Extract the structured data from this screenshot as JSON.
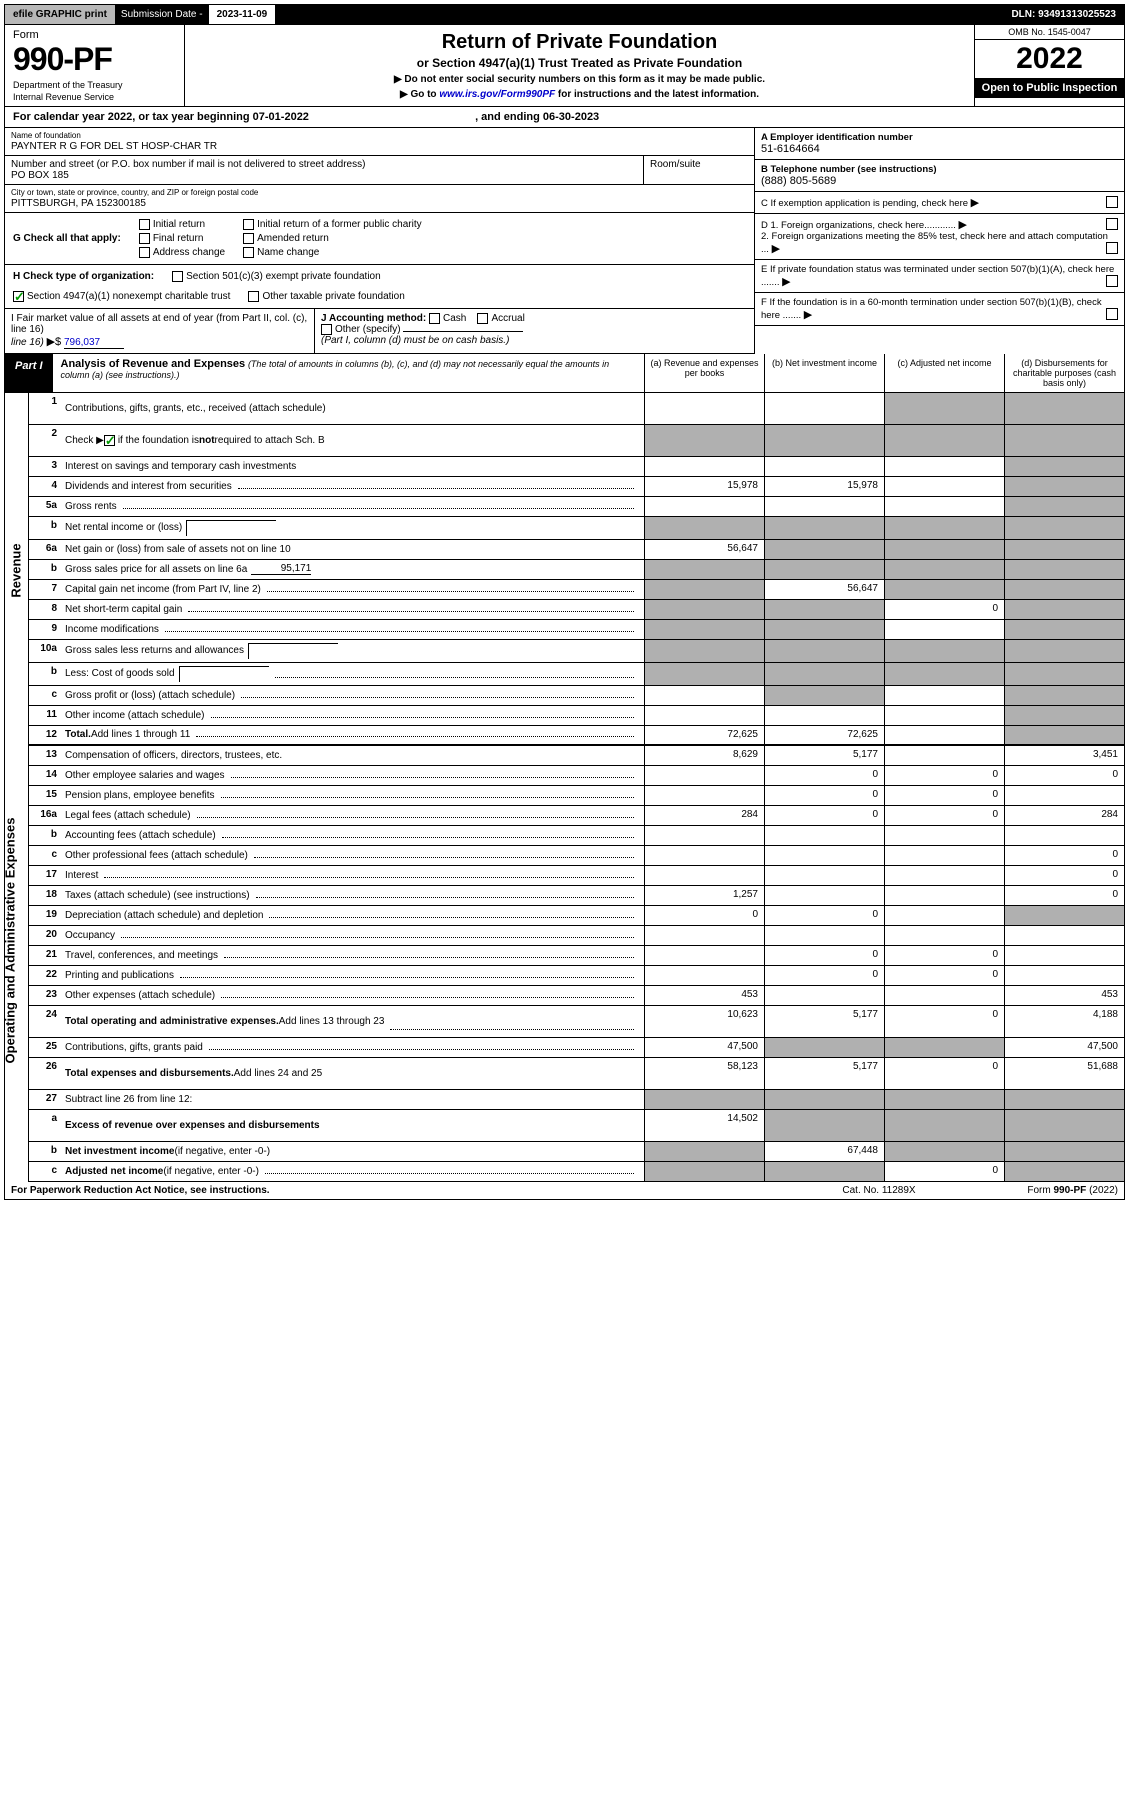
{
  "top": {
    "efile": "efile GRAPHIC print",
    "sub_label": "Submission Date -",
    "sub_date": "2023-11-09",
    "dln_label": "DLN:",
    "dln": "93491313025523"
  },
  "header": {
    "form_word": "Form",
    "form_number": "990-PF",
    "dept1": "Department of the Treasury",
    "dept2": "Internal Revenue Service",
    "title": "Return of Private Foundation",
    "subtitle": "or Section 4947(a)(1) Trust Treated as Private Foundation",
    "note1": "▶ Do not enter social security numbers on this form as it may be made public.",
    "note2_pre": "▶ Go to ",
    "note2_link": "www.irs.gov/Form990PF",
    "note2_post": " for instructions and the latest information.",
    "omb": "OMB No. 1545-0047",
    "year": "2022",
    "open": "Open to Public Inspection"
  },
  "cal": {
    "text_a": "For calendar year 2022, or tax year beginning ",
    "begin": "07-01-2022",
    "text_b": ", and ending ",
    "end": "06-30-2023"
  },
  "entity": {
    "name_label": "Name of foundation",
    "name": "PAYNTER R G FOR DEL ST HOSP-CHAR TR",
    "addr_label": "Number and street (or P.O. box number if mail is not delivered to street address)",
    "addr": "PO BOX 185",
    "room_label": "Room/suite",
    "city_label": "City or town, state or province, country, and ZIP or foreign postal code",
    "city": "PITTSBURGH, PA  152300185",
    "a_label": "A Employer identification number",
    "a_val": "51-6164664",
    "b_label": "B Telephone number (see instructions)",
    "b_val": "(888) 805-5689",
    "c_label": "C If exemption application is pending, check here",
    "d1": "D 1. Foreign organizations, check here............",
    "d2": "  2. Foreign organizations meeting the 85% test, check here and attach computation ...",
    "e": "E  If private foundation status was terminated under section 507(b)(1)(A), check here .......",
    "f": "F  If the foundation is in a 60-month termination under section 507(b)(1)(B), check here ......."
  },
  "g": {
    "label": "G Check all that apply:",
    "opts": [
      "Initial return",
      "Final return",
      "Address change",
      "Initial return of a former public charity",
      "Amended return",
      "Name change"
    ]
  },
  "h": {
    "label": "H Check type of organization:",
    "o1": "Section 501(c)(3) exempt private foundation",
    "o2": "Section 4947(a)(1) nonexempt charitable trust",
    "o3": "Other taxable private foundation"
  },
  "i": {
    "label": "I Fair market value of all assets at end of year (from Part II, col. (c), line 16)",
    "arrow": "▶$",
    "val": "796,037"
  },
  "j": {
    "label": "J Accounting method:",
    "o1": "Cash",
    "o2": "Accrual",
    "o3": "Other (specify)",
    "note": "(Part I, column (d) must be on cash basis.)"
  },
  "part1": {
    "label": "Part I",
    "title": "Analysis of Revenue and Expenses",
    "note": "(The total of amounts in columns (b), (c), and (d) may not necessarily equal the amounts in column (a) (see instructions).)",
    "cols": {
      "a": "(a)   Revenue and expenses per books",
      "b": "(b)   Net investment income",
      "c": "(c)   Adjusted net income",
      "d": "(d)   Disbursements for charitable purposes (cash basis only)"
    }
  },
  "side": {
    "rev": "Revenue",
    "exp": "Operating and Administrative Expenses"
  },
  "rows": [
    {
      "n": "1",
      "label": "Contributions, gifts, grants, etc., received (attach schedule)",
      "a": "",
      "b": "",
      "c": "s",
      "d": "s",
      "tall": true
    },
    {
      "n": "2",
      "label_html": "Check ▶ [x] if the foundation is <b>not</b> required to attach Sch. B",
      "a": "s",
      "b": "s",
      "c": "s",
      "d": "s",
      "tall": true,
      "checked": true
    },
    {
      "n": "3",
      "label": "Interest on savings and temporary cash investments",
      "a": "",
      "b": "",
      "c": "",
      "d": "s"
    },
    {
      "n": "4",
      "label": "Dividends and interest from securities",
      "dots": true,
      "a": "15,978",
      "b": "15,978",
      "c": "",
      "d": "s"
    },
    {
      "n": "5a",
      "label": "Gross rents",
      "dots": true,
      "a": "",
      "b": "",
      "c": "",
      "d": "s"
    },
    {
      "n": "b",
      "label": "Net rental income or (loss)",
      "box": true,
      "a": "s",
      "b": "s",
      "c": "s",
      "d": "s"
    },
    {
      "n": "6a",
      "label": "Net gain or (loss) from sale of assets not on line 10",
      "a": "56,647",
      "b": "s",
      "c": "s",
      "d": "s"
    },
    {
      "n": "b",
      "label": "Gross sales price for all assets on line 6a",
      "underline_val": "95,171",
      "a": "s",
      "b": "s",
      "c": "s",
      "d": "s"
    },
    {
      "n": "7",
      "label": "Capital gain net income (from Part IV, line 2)",
      "dots": true,
      "a": "s",
      "b": "56,647",
      "c": "s",
      "d": "s"
    },
    {
      "n": "8",
      "label": "Net short-term capital gain",
      "dots": true,
      "a": "s",
      "b": "s",
      "c": "0",
      "d": "s"
    },
    {
      "n": "9",
      "label": "Income modifications",
      "dots": true,
      "a": "s",
      "b": "s",
      "c": "",
      "d": "s"
    },
    {
      "n": "10a",
      "label": "Gross sales less returns and allowances",
      "box": true,
      "a": "s",
      "b": "s",
      "c": "s",
      "d": "s"
    },
    {
      "n": "b",
      "label": "Less: Cost of goods sold",
      "dots": true,
      "box": true,
      "a": "s",
      "b": "s",
      "c": "s",
      "d": "s"
    },
    {
      "n": "c",
      "label": "Gross profit or (loss) (attach schedule)",
      "dots": true,
      "a": "",
      "b": "s",
      "c": "",
      "d": "s"
    },
    {
      "n": "11",
      "label": "Other income (attach schedule)",
      "dots": true,
      "a": "",
      "b": "",
      "c": "",
      "d": "s"
    },
    {
      "n": "12",
      "label_b": "Total. ",
      "label": "Add lines 1 through 11",
      "dots": true,
      "a": "72,625",
      "b": "72,625",
      "c": "",
      "d": "s"
    },
    {
      "n": "13",
      "label": "Compensation of officers, directors, trustees, etc.",
      "a": "8,629",
      "b": "5,177",
      "c": "",
      "d": "3,451"
    },
    {
      "n": "14",
      "label": "Other employee salaries and wages",
      "dots": true,
      "a": "",
      "b": "0",
      "c": "0",
      "d": "0"
    },
    {
      "n": "15",
      "label": "Pension plans, employee benefits",
      "dots": true,
      "a": "",
      "b": "0",
      "c": "0",
      "d": ""
    },
    {
      "n": "16a",
      "label": "Legal fees (attach schedule)",
      "dots": true,
      "a": "284",
      "b": "0",
      "c": "0",
      "d": "284"
    },
    {
      "n": "b",
      "label": "Accounting fees (attach schedule)",
      "dots": true,
      "a": "",
      "b": "",
      "c": "",
      "d": ""
    },
    {
      "n": "c",
      "label": "Other professional fees (attach schedule)",
      "dots": true,
      "a": "",
      "b": "",
      "c": "",
      "d": "0"
    },
    {
      "n": "17",
      "label": "Interest",
      "dots": true,
      "a": "",
      "b": "",
      "c": "",
      "d": "0"
    },
    {
      "n": "18",
      "label": "Taxes (attach schedule) (see instructions)",
      "dots": true,
      "a": "1,257",
      "b": "",
      "c": "",
      "d": "0"
    },
    {
      "n": "19",
      "label": "Depreciation (attach schedule) and depletion",
      "dots": true,
      "a": "0",
      "b": "0",
      "c": "",
      "d": "s"
    },
    {
      "n": "20",
      "label": "Occupancy",
      "dots": true,
      "a": "",
      "b": "",
      "c": "",
      "d": ""
    },
    {
      "n": "21",
      "label": "Travel, conferences, and meetings",
      "dots": true,
      "a": "",
      "b": "0",
      "c": "0",
      "d": ""
    },
    {
      "n": "22",
      "label": "Printing and publications",
      "dots": true,
      "a": "",
      "b": "0",
      "c": "0",
      "d": ""
    },
    {
      "n": "23",
      "label": "Other expenses (attach schedule)",
      "dots": true,
      "a": "453",
      "b": "",
      "c": "",
      "d": "453"
    },
    {
      "n": "24",
      "label_b": "Total operating and administrative expenses. ",
      "label": "Add lines 13 through 23",
      "dots": true,
      "a": "10,623",
      "b": "5,177",
      "c": "0",
      "d": "4,188",
      "tall": true
    },
    {
      "n": "25",
      "label": "Contributions, gifts, grants paid",
      "dots": true,
      "a": "47,500",
      "b": "s",
      "c": "s",
      "d": "47,500"
    },
    {
      "n": "26",
      "label_b": "Total expenses and disbursements. ",
      "label": "Add lines 24 and 25",
      "a": "58,123",
      "b": "5,177",
      "c": "0",
      "d": "51,688",
      "tall": true
    },
    {
      "n": "27",
      "label": "Subtract line 26 from line 12:",
      "a": "s",
      "b": "s",
      "c": "s",
      "d": "s"
    },
    {
      "n": "a",
      "label_b": "Excess of revenue over expenses and disbursements",
      "a": "14,502",
      "b": "s",
      "c": "s",
      "d": "s",
      "tall": true
    },
    {
      "n": "b",
      "label_b": "Net investment income ",
      "label": "(if negative, enter -0-)",
      "a": "s",
      "b": "67,448",
      "c": "s",
      "d": "s"
    },
    {
      "n": "c",
      "label_b": "Adjusted net income ",
      "label": "(if negative, enter -0-)",
      "dots": true,
      "a": "s",
      "b": "s",
      "c": "0",
      "d": "s"
    }
  ],
  "footer": {
    "left": "For Paperwork Reduction Act Notice, see instructions.",
    "mid": "Cat. No. 11289X",
    "right": "Form 990-PF (2022)"
  },
  "colors": {
    "link": "#0000cc",
    "check": "#009900",
    "shade": "#b0b0b0"
  }
}
